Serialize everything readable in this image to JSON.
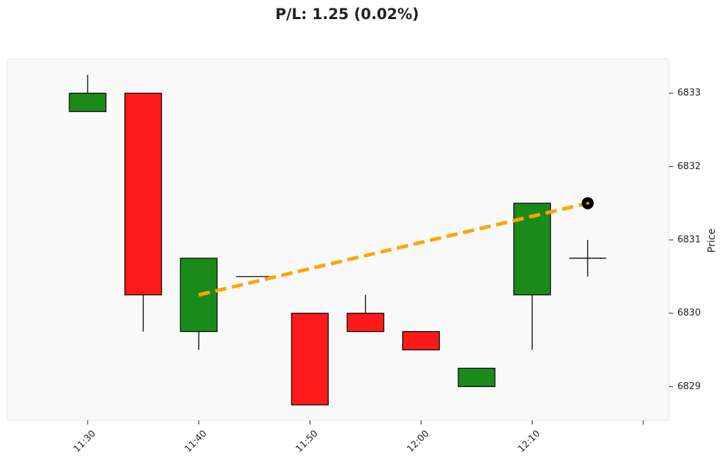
{
  "chart_data": {
    "type": "candlestick",
    "title": "P/L: 1.25 (0.02%)",
    "ylabel": "Price",
    "open": [
      6832.75,
      6833,
      6829.75,
      6830.5,
      6830,
      6830,
      6829.75,
      6829,
      6830.25,
      6830.75
    ],
    "high": [
      6833.25,
      6833,
      6830.75,
      6830.5,
      6830,
      6830.25,
      6829.75,
      6829.25,
      6831.5,
      6831
    ],
    "low": [
      6832.75,
      6829.75,
      6829.5,
      6830.5,
      6828.75,
      6829.75,
      6829.5,
      6829,
      6829.5,
      6830.5
    ],
    "close": [
      6833,
      6830.25,
      6830.75,
      6830.5,
      6828.75,
      6829.75,
      6829.5,
      6829.25,
      6831.5,
      6830.75
    ],
    "up_color": "#1a8a1a",
    "down_color": "#ff1a1a",
    "background": "#f9f9f9",
    "xlim": [
      -1.45,
      10.46
    ],
    "xticks": [
      {
        "value": 0,
        "label": "11:30"
      },
      {
        "value": 2,
        "label": "11:40"
      },
      {
        "value": 4,
        "label": "11:50"
      },
      {
        "value": 6,
        "label": "12:00"
      },
      {
        "value": 8,
        "label": "12:10"
      },
      {
        "value": 10,
        "label": null
      }
    ],
    "ylim": [
      6828.54,
      6833.47
    ],
    "yticks": [
      6829,
      6830,
      6831,
      6832,
      6833
    ],
    "trade": {
      "entry": {
        "x": 2,
        "price": 6830.25
      },
      "exit": {
        "x": 9,
        "price": 6831.5
      },
      "color": "#ffa500",
      "entry_color": "#1a8a1a"
    }
  }
}
